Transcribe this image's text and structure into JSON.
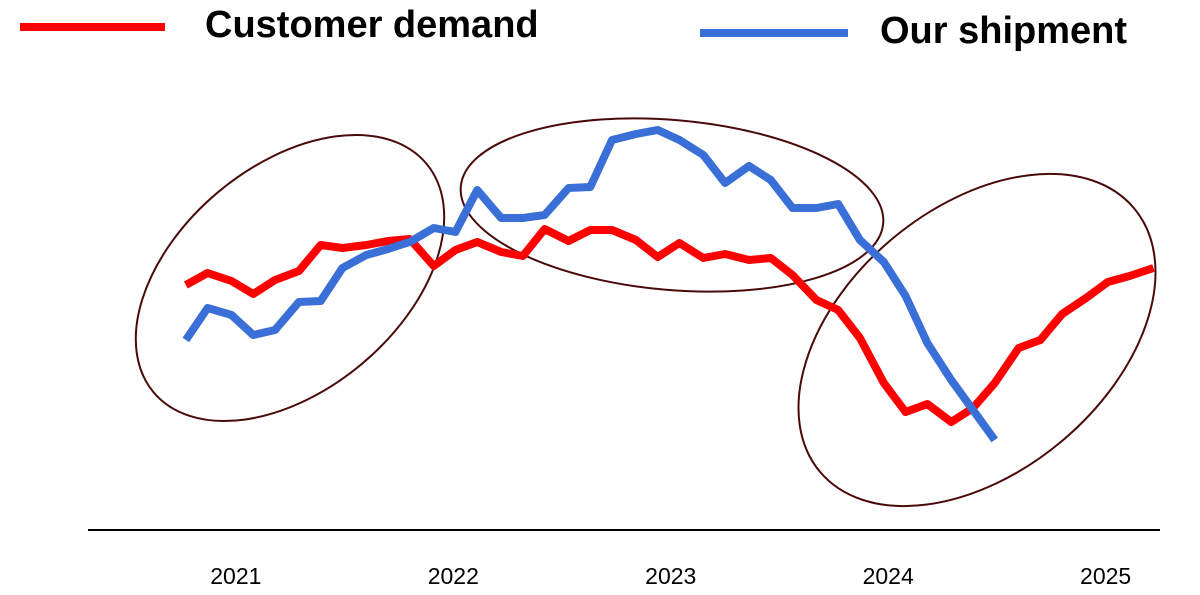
{
  "chart_data": {
    "type": "line",
    "x": [
      2020.77,
      2020.87,
      2020.98,
      2021.08,
      2021.18,
      2021.29,
      2021.39,
      2021.49,
      2021.6,
      2021.7,
      2021.8,
      2021.91,
      2022.01,
      2022.11,
      2022.22,
      2022.32,
      2022.42,
      2022.53,
      2022.63,
      2022.73,
      2022.84,
      2022.94,
      2023.04,
      2023.15,
      2023.25,
      2023.36,
      2023.46,
      2023.56,
      2023.67,
      2023.77,
      2023.87,
      2023.98,
      2024.08,
      2024.18,
      2024.29,
      2024.39,
      2024.49,
      2024.6,
      2024.7,
      2024.8,
      2024.91,
      2025.01,
      2025.11,
      2025.22
    ],
    "series": [
      {
        "name": "Customer demand",
        "color": "#ff0000",
        "values": [
          53.75,
          56.75,
          54.75,
          51.5,
          55,
          57.25,
          63.75,
          63,
          63.75,
          64.75,
          65.25,
          58.5,
          62.5,
          64.5,
          62,
          61,
          67.75,
          64.75,
          67.5,
          67.5,
          65,
          60.75,
          64.25,
          60.5,
          61.5,
          60,
          60.5,
          56.25,
          50,
          47.5,
          40.5,
          29.25,
          22,
          24,
          19.5,
          23,
          29.25,
          38,
          40,
          46.5,
          50.5,
          54.5,
          56,
          58
        ]
      },
      {
        "name": "Our shipment",
        "color": "#3a6fd8",
        "values": [
          40,
          48,
          46.25,
          41.25,
          42.5,
          49.5,
          49.75,
          58,
          61.25,
          62.75,
          64.5,
          68,
          67,
          77.5,
          70.5,
          70.5,
          71.25,
          78,
          78.25,
          90,
          91.5,
          92.5,
          90,
          86.25,
          79.25,
          83.5,
          80,
          73,
          73,
          74,
          65,
          59.5,
          51,
          39.25,
          30,
          22.5,
          15,
          null,
          null,
          null,
          null,
          null,
          null,
          null
        ]
      }
    ],
    "xlim": [
      2020.32,
      2025.25
    ],
    "xticks": [
      2021,
      2022,
      2023,
      2024,
      2025
    ],
    "ylim": [
      0,
      100
    ]
  }
}
